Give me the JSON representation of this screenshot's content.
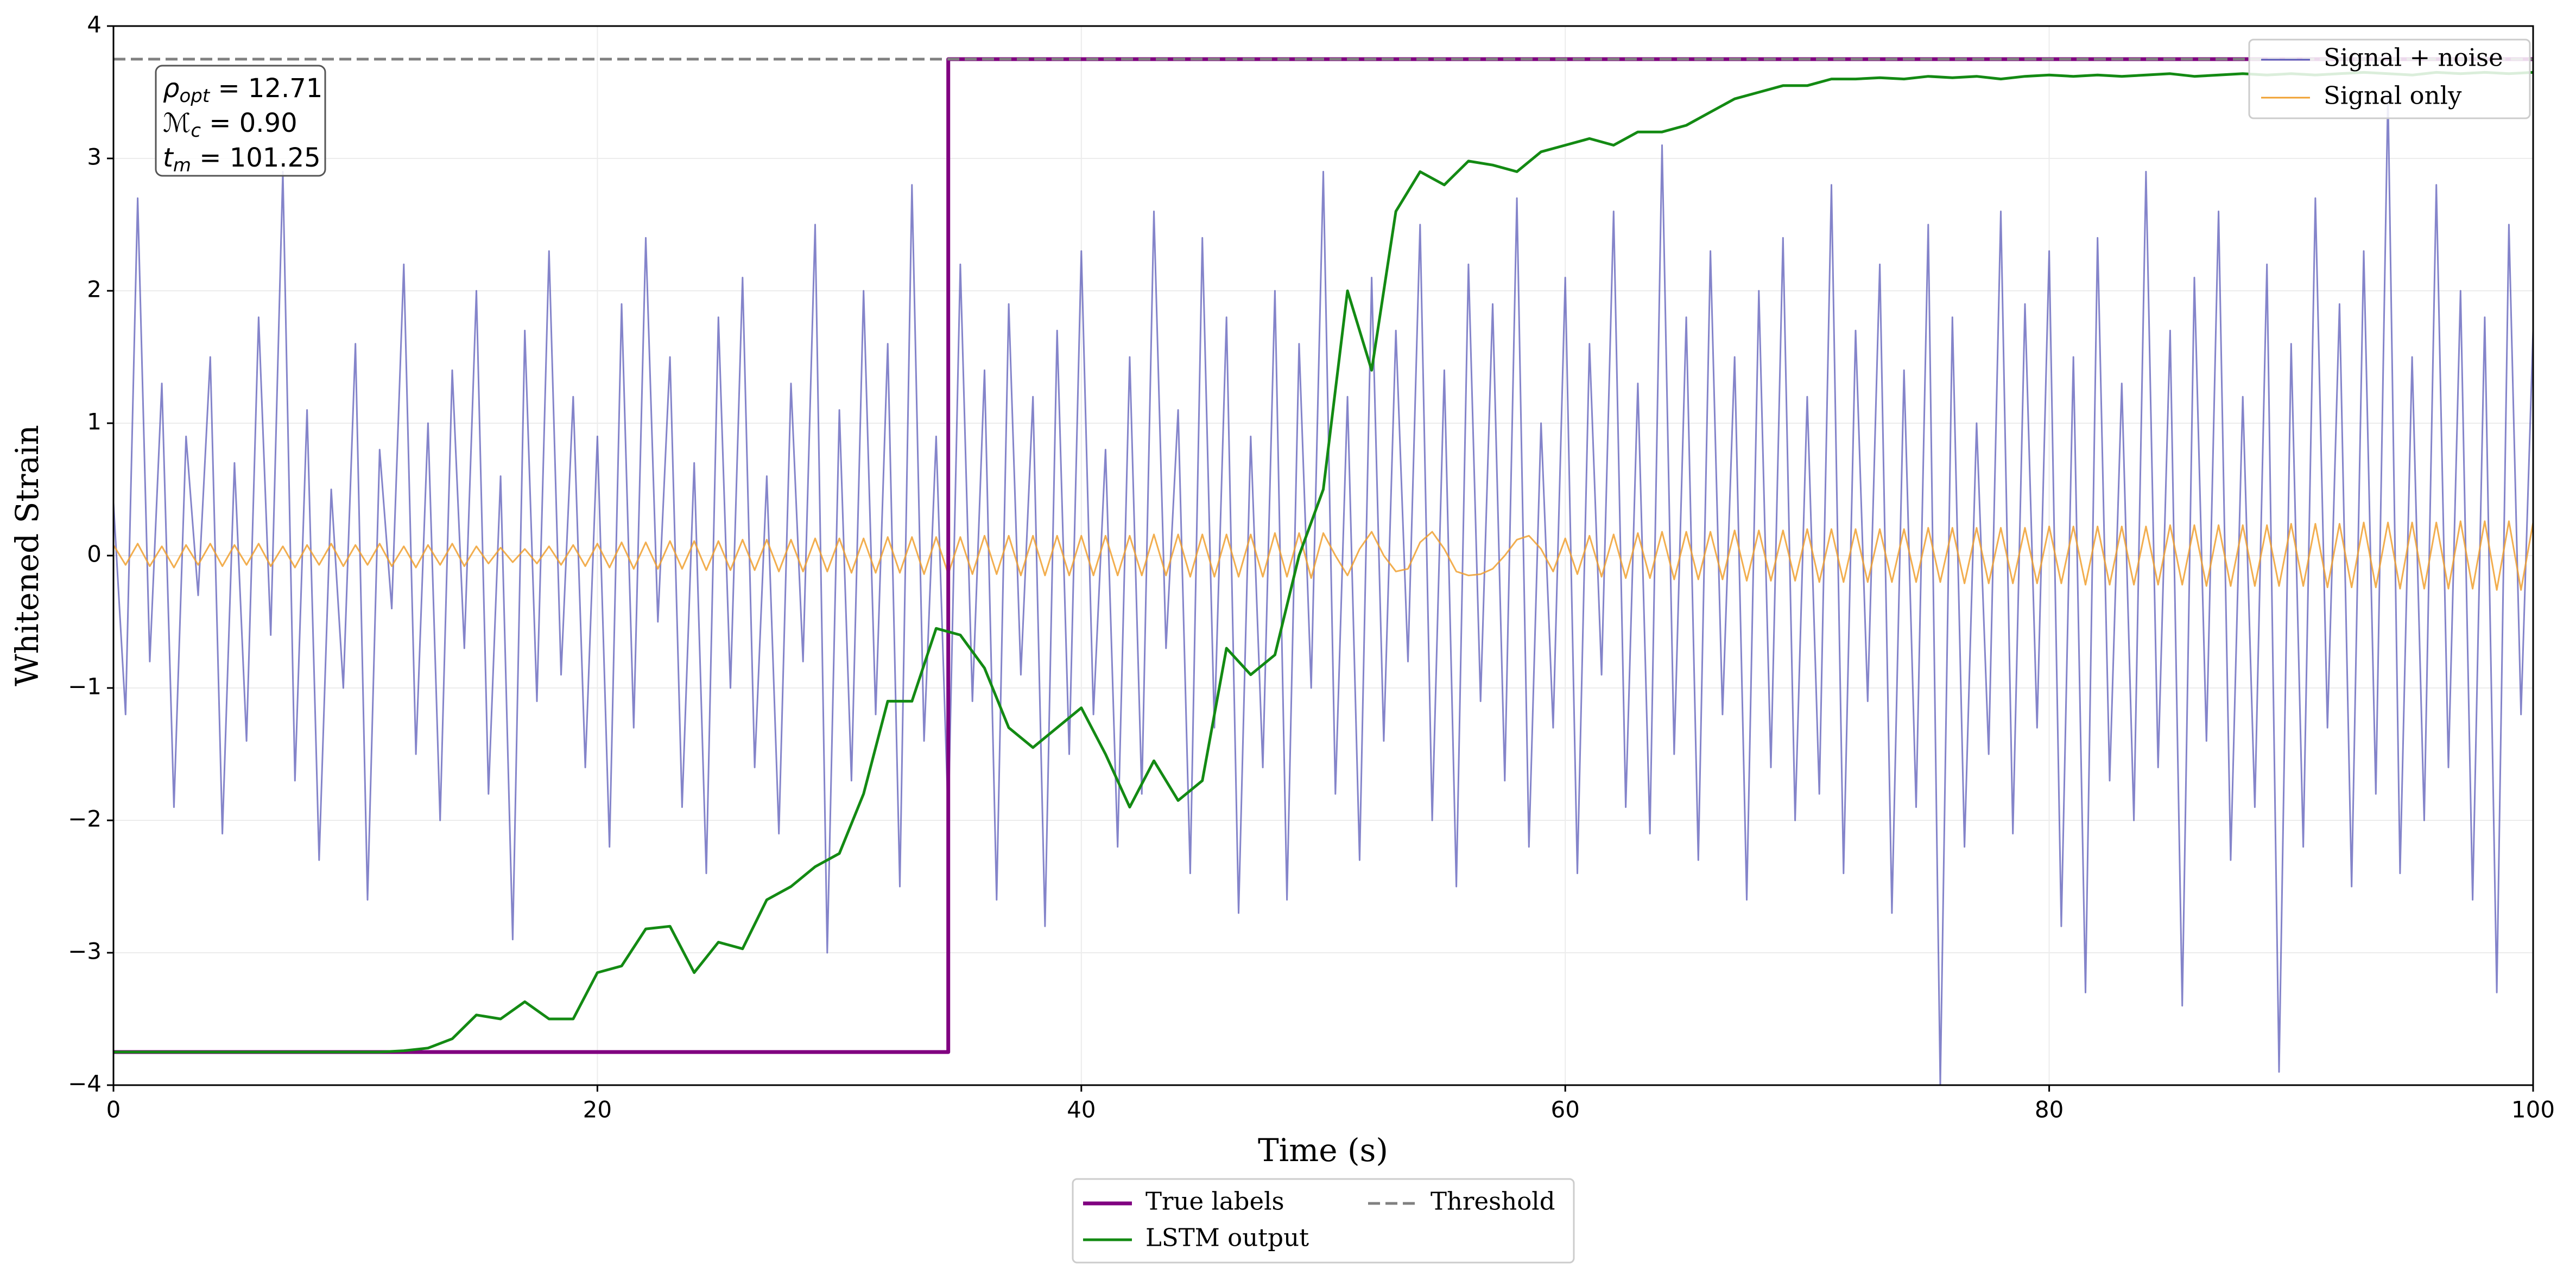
{
  "chart_data": {
    "type": "line",
    "xlabel": "Time (s)",
    "ylabel": "Whitened Strain",
    "xlim": [
      0,
      100
    ],
    "ylim": [
      -4,
      4
    ],
    "xticks": [
      0,
      20,
      40,
      60,
      80,
      100
    ],
    "yticks": [
      {
        "value": -4,
        "label": "−4"
      },
      {
        "value": -3,
        "label": "−3"
      },
      {
        "value": -2,
        "label": "−2"
      },
      {
        "value": -1,
        "label": "−1"
      },
      0,
      1,
      2,
      3,
      4
    ],
    "grid": true,
    "x": [
      0,
      0.5,
      1,
      1.5,
      2,
      2.5,
      3,
      3.5,
      4,
      4.5,
      5,
      5.5,
      6,
      6.5,
      7,
      7.5,
      8,
      8.5,
      9,
      9.5,
      10,
      10.5,
      11,
      11.5,
      12,
      12.5,
      13,
      13.5,
      14,
      14.5,
      15,
      15.5,
      16,
      16.5,
      17,
      17.5,
      18,
      18.5,
      19,
      19.5,
      20,
      20.5,
      21,
      21.5,
      22,
      22.5,
      23,
      23.5,
      24,
      24.5,
      25,
      25.5,
      26,
      26.5,
      27,
      27.5,
      28,
      28.5,
      29,
      29.5,
      30,
      30.5,
      31,
      31.5,
      32,
      32.5,
      33,
      33.5,
      34,
      34.5,
      35,
      35.5,
      36,
      36.5,
      37,
      37.5,
      38,
      38.5,
      39,
      39.5,
      40,
      40.5,
      41,
      41.5,
      42,
      42.5,
      43,
      43.5,
      44,
      44.5,
      45,
      45.5,
      46,
      46.5,
      47,
      47.5,
      48,
      48.5,
      49,
      49.5,
      50,
      50.5,
      51,
      51.5,
      52,
      52.5,
      53,
      53.5,
      54,
      54.5,
      55,
      55.5,
      56,
      56.5,
      57,
      57.5,
      58,
      58.5,
      59,
      59.5,
      60,
      60.5,
      61,
      61.5,
      62,
      62.5,
      63,
      63.5,
      64,
      64.5,
      65,
      65.5,
      66,
      66.5,
      67,
      67.5,
      68,
      68.5,
      69,
      69.5,
      70,
      70.5,
      71,
      71.5,
      72,
      72.5,
      73,
      73.5,
      74,
      74.5,
      75,
      75.5,
      76,
      76.5,
      77,
      77.5,
      78,
      78.5,
      79,
      79.5,
      80,
      80.5,
      81,
      81.5,
      82,
      82.5,
      83,
      83.5,
      84,
      84.5,
      85,
      85.5,
      86,
      86.5,
      87,
      87.5,
      88,
      88.5,
      89,
      89.5,
      90,
      90.5,
      91,
      91.5,
      92,
      92.5,
      93,
      93.5,
      94,
      94.5,
      95,
      95.5,
      96,
      96.5,
      97,
      97.5,
      98,
      98.5,
      99,
      99.5,
      100
    ],
    "series": [
      {
        "name": "Signal + noise",
        "color": "#5b5bb8",
        "opacity": 0.75,
        "width": 3,
        "legend": "upper right",
        "values": [
          0.4,
          -1.2,
          2.7,
          -0.8,
          1.3,
          -1.9,
          0.9,
          -0.3,
          1.5,
          -2.1,
          0.7,
          -1.4,
          1.8,
          -0.6,
          2.9,
          -1.7,
          1.1,
          -2.3,
          0.5,
          -1.0,
          1.6,
          -2.6,
          0.8,
          -0.4,
          2.2,
          -1.5,
          1.0,
          -2.0,
          1.4,
          -0.7,
          2.0,
          -1.8,
          0.6,
          -2.9,
          1.7,
          -1.1,
          2.3,
          -0.9,
          1.2,
          -1.6,
          0.9,
          -2.2,
          1.9,
          -1.3,
          2.4,
          -0.5,
          1.5,
          -1.9,
          0.7,
          -2.4,
          1.8,
          -1.0,
          2.1,
          -1.6,
          0.6,
          -2.1,
          1.3,
          -0.8,
          2.5,
          -3.0,
          1.1,
          -1.7,
          2.0,
          -1.2,
          1.6,
          -2.5,
          2.8,
          -1.4,
          0.9,
          -2.0,
          2.2,
          -1.1,
          1.4,
          -2.6,
          1.9,
          -0.9,
          1.2,
          -2.8,
          1.7,
          -1.5,
          2.3,
          -1.2,
          0.8,
          -2.2,
          1.5,
          -1.8,
          2.6,
          -0.7,
          1.1,
          -2.4,
          2.4,
          -1.3,
          1.8,
          -2.7,
          0.9,
          -1.6,
          2.0,
          -2.6,
          1.6,
          -1.0,
          2.9,
          -1.8,
          1.2,
          -2.3,
          2.1,
          -1.4,
          1.7,
          -0.8,
          2.5,
          -2.0,
          1.4,
          -2.5,
          2.2,
          -1.1,
          1.9,
          -1.7,
          2.7,
          -2.2,
          1.0,
          -1.3,
          2.1,
          -2.4,
          1.6,
          -0.9,
          2.6,
          -1.9,
          1.3,
          -2.1,
          3.1,
          -1.5,
          1.8,
          -2.3,
          2.3,
          -1.2,
          1.5,
          -2.6,
          2.0,
          -1.6,
          2.4,
          -2.0,
          1.2,
          -1.8,
          2.8,
          -2.4,
          1.7,
          -1.1,
          2.2,
          -2.7,
          1.4,
          -1.9,
          2.5,
          -4.0,
          1.8,
          -2.2,
          1.0,
          -1.5,
          2.6,
          -2.1,
          1.9,
          -1.3,
          2.3,
          -2.8,
          1.5,
          -3.3,
          2.4,
          -1.7,
          1.3,
          -2.0,
          2.9,
          -1.6,
          1.7,
          -3.4,
          2.1,
          -1.4,
          2.6,
          -2.3,
          1.2,
          -1.9,
          2.2,
          -3.9,
          1.6,
          -2.2,
          2.7,
          -1.3,
          1.9,
          -2.5,
          2.3,
          -1.8,
          3.5,
          -2.4,
          1.5,
          -2.0,
          2.8,
          -1.6,
          2.0,
          -2.6,
          1.8,
          -3.3,
          2.5,
          -1.2,
          1.7
        ]
      },
      {
        "name": "Signal only",
        "color": "#f0a030",
        "opacity": 0.85,
        "width": 3,
        "legend": "upper right",
        "values": [
          0.08,
          -0.07,
          0.09,
          -0.08,
          0.07,
          -0.09,
          0.08,
          -0.07,
          0.09,
          -0.08,
          0.08,
          -0.07,
          0.09,
          -0.08,
          0.07,
          -0.09,
          0.08,
          -0.07,
          0.09,
          -0.08,
          0.08,
          -0.07,
          0.09,
          -0.08,
          0.07,
          -0.09,
          0.08,
          -0.07,
          0.09,
          -0.08,
          0.07,
          -0.06,
          0.06,
          -0.05,
          0.05,
          -0.06,
          0.07,
          -0.07,
          0.08,
          -0.08,
          0.09,
          -0.09,
          0.1,
          -0.1,
          0.1,
          -0.1,
          0.11,
          -0.1,
          0.11,
          -0.11,
          0.11,
          -0.11,
          0.12,
          -0.11,
          0.12,
          -0.12,
          0.12,
          -0.12,
          0.13,
          -0.12,
          0.13,
          -0.13,
          0.13,
          -0.13,
          0.14,
          -0.13,
          0.14,
          -0.14,
          0.14,
          -0.14,
          0.14,
          -0.14,
          0.15,
          -0.14,
          0.15,
          -0.15,
          0.15,
          -0.15,
          0.15,
          -0.15,
          0.15,
          -0.15,
          0.15,
          -0.15,
          0.15,
          -0.15,
          0.16,
          -0.15,
          0.16,
          -0.16,
          0.16,
          -0.16,
          0.16,
          -0.16,
          0.16,
          -0.16,
          0.17,
          -0.16,
          0.17,
          -0.17,
          0.17,
          0.0,
          -0.15,
          0.05,
          0.18,
          0.0,
          -0.12,
          -0.1,
          0.1,
          0.18,
          0.05,
          -0.12,
          -0.15,
          -0.14,
          -0.1,
          0.0,
          0.12,
          0.15,
          0.05,
          -0.12,
          0.13,
          -0.14,
          0.15,
          -0.16,
          0.16,
          -0.17,
          0.17,
          -0.17,
          0.18,
          -0.18,
          0.18,
          -0.18,
          0.18,
          -0.18,
          0.19,
          -0.19,
          0.19,
          -0.19,
          0.19,
          -0.19,
          0.2,
          -0.2,
          0.2,
          -0.2,
          0.2,
          -0.2,
          0.2,
          -0.2,
          0.2,
          -0.2,
          0.21,
          -0.2,
          0.21,
          -0.21,
          0.21,
          -0.21,
          0.21,
          -0.21,
          0.21,
          -0.21,
          0.22,
          -0.21,
          0.22,
          -0.22,
          0.22,
          -0.22,
          0.22,
          -0.22,
          0.22,
          -0.22,
          0.23,
          -0.22,
          0.23,
          -0.23,
          0.23,
          -0.23,
          0.23,
          -0.23,
          0.23,
          -0.23,
          0.24,
          -0.23,
          0.24,
          -0.24,
          0.24,
          -0.24,
          0.25,
          -0.24,
          0.25,
          -0.25,
          0.25,
          -0.25,
          0.25,
          -0.25,
          0.26,
          -0.25,
          0.26,
          -0.26,
          0.26,
          -0.26,
          0.25
        ]
      },
      {
        "name": "True labels",
        "color": "#800080",
        "opacity": 1,
        "width": 7,
        "legend": "lower center",
        "x": [
          0,
          34.5,
          34.5,
          100
        ],
        "values": [
          -3.75,
          -3.75,
          3.75,
          3.75
        ]
      },
      {
        "name": "LSTM output",
        "color": "#138a13",
        "opacity": 1,
        "width": 5,
        "legend": "lower center",
        "x": [
          0,
          1,
          2,
          3,
          4,
          5,
          6,
          7,
          8,
          9,
          10,
          11,
          12,
          13,
          14,
          15,
          16,
          17,
          18,
          19,
          20,
          21,
          22,
          23,
          24,
          25,
          26,
          27,
          28,
          29,
          30,
          31,
          32,
          33,
          34,
          35,
          36,
          37,
          38,
          39,
          40,
          41,
          42,
          43,
          44,
          45,
          46,
          47,
          48,
          49,
          50,
          51,
          52,
          53,
          54,
          55,
          56,
          57,
          58,
          59,
          60,
          61,
          62,
          63,
          64,
          65,
          66,
          67,
          68,
          69,
          70,
          71,
          72,
          73,
          74,
          75,
          76,
          77,
          78,
          79,
          80,
          81,
          82,
          83,
          84,
          85,
          86,
          87,
          88,
          89,
          90,
          91,
          92,
          93,
          94,
          95,
          96,
          97,
          98,
          99,
          100
        ],
        "values": [
          -3.75,
          -3.75,
          -3.75,
          -3.75,
          -3.75,
          -3.75,
          -3.75,
          -3.75,
          -3.75,
          -3.75,
          -3.75,
          -3.75,
          -3.74,
          -3.72,
          -3.65,
          -3.47,
          -3.5,
          -3.37,
          -3.5,
          -3.5,
          -3.15,
          -3.1,
          -2.82,
          -2.8,
          -3.15,
          -2.92,
          -2.97,
          -2.6,
          -2.5,
          -2.35,
          -2.25,
          -1.8,
          -1.1,
          -1.1,
          -0.55,
          -0.6,
          -0.85,
          -1.3,
          -1.45,
          -1.3,
          -1.15,
          -1.5,
          -1.9,
          -1.55,
          -1.85,
          -1.7,
          -0.7,
          -0.9,
          -0.75,
          0.0,
          0.5,
          2.0,
          1.4,
          2.6,
          2.9,
          2.8,
          2.98,
          2.95,
          2.9,
          3.05,
          3.1,
          3.15,
          3.1,
          3.2,
          3.2,
          3.25,
          3.35,
          3.45,
          3.5,
          3.55,
          3.55,
          3.6,
          3.6,
          3.61,
          3.6,
          3.62,
          3.61,
          3.62,
          3.6,
          3.62,
          3.63,
          3.62,
          3.63,
          3.62,
          3.63,
          3.64,
          3.62,
          3.63,
          3.64,
          3.63,
          3.64,
          3.63,
          3.64,
          3.65,
          3.64,
          3.63,
          3.65,
          3.64,
          3.65,
          3.64,
          3.65
        ]
      }
    ],
    "threshold": {
      "name": "Threshold",
      "value": 3.75,
      "color": "#808080",
      "legend": "lower center"
    },
    "annotations": [
      {
        "symbol": "ρ",
        "subscript": "opt",
        "text": " = 12.71"
      },
      {
        "symbol": "ℳ",
        "subscript": "c",
        "text": " = 0.90"
      },
      {
        "symbol": "t",
        "subscript": "m",
        "text": " = 101.25"
      }
    ]
  }
}
